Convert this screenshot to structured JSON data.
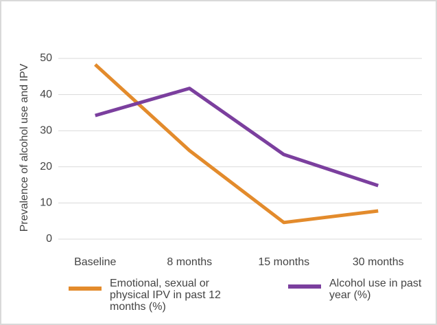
{
  "chart_data": {
    "type": "line",
    "categories": [
      "Baseline",
      "8 months",
      "15 months",
      "30 months"
    ],
    "series": [
      {
        "name": "Emotional, sexual or physical IPV in past 12 months (%)",
        "color": "#e38b2c",
        "values": [
          48.3,
          24.5,
          4.6,
          7.8
        ]
      },
      {
        "name": "Alcohol use in past year (%)",
        "color": "#7b3f9e",
        "values": [
          34.2,
          41.7,
          23.4,
          14.8
        ]
      }
    ],
    "ylabel": "Prevalence of alcohol use and IPV",
    "ylim": [
      0,
      50
    ],
    "yticks": [
      0,
      10,
      20,
      30,
      40,
      50
    ],
    "grid": true
  }
}
